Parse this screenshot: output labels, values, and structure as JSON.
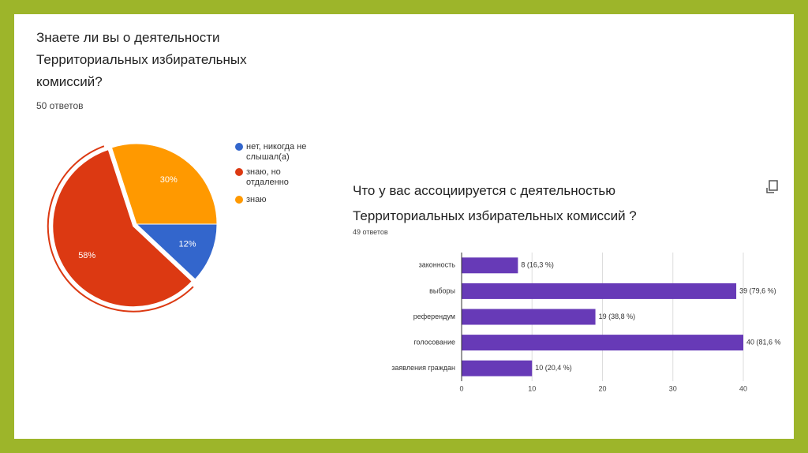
{
  "chart_data": [
    {
      "type": "pie",
      "title": "Знаете ли вы о деятельности Территориальных избирательных комиссий?",
      "subtitle": "50 ответов",
      "categories": [
        "нет, никогда не слышал(а)",
        "знаю, но отдаленно",
        "знаю"
      ],
      "values": [
        12,
        58,
        30
      ],
      "value_labels": [
        "12%",
        "58%",
        "30%"
      ],
      "colors": [
        "#3366cc",
        "#dc3912",
        "#ff9900"
      ]
    },
    {
      "type": "bar",
      "title": "Что у вас ассоциируется с деятельностью Территориальных избирательных комиссий ?",
      "subtitle": "49 ответов",
      "categories": [
        "законность",
        "выборы",
        "референдум",
        "голосование",
        "заявления граждан"
      ],
      "values": [
        8,
        39,
        19,
        40,
        10
      ],
      "value_labels": [
        "8 (16,3 %)",
        "39 (79,6 %)",
        "19 (38,8 %)",
        "40 (81,6 %",
        "10 (20,4 %)"
      ],
      "color": "#673ab7",
      "xlim": [
        0,
        40
      ],
      "xticks": [
        0,
        10,
        20,
        30,
        40
      ],
      "grid": true
    }
  ]
}
